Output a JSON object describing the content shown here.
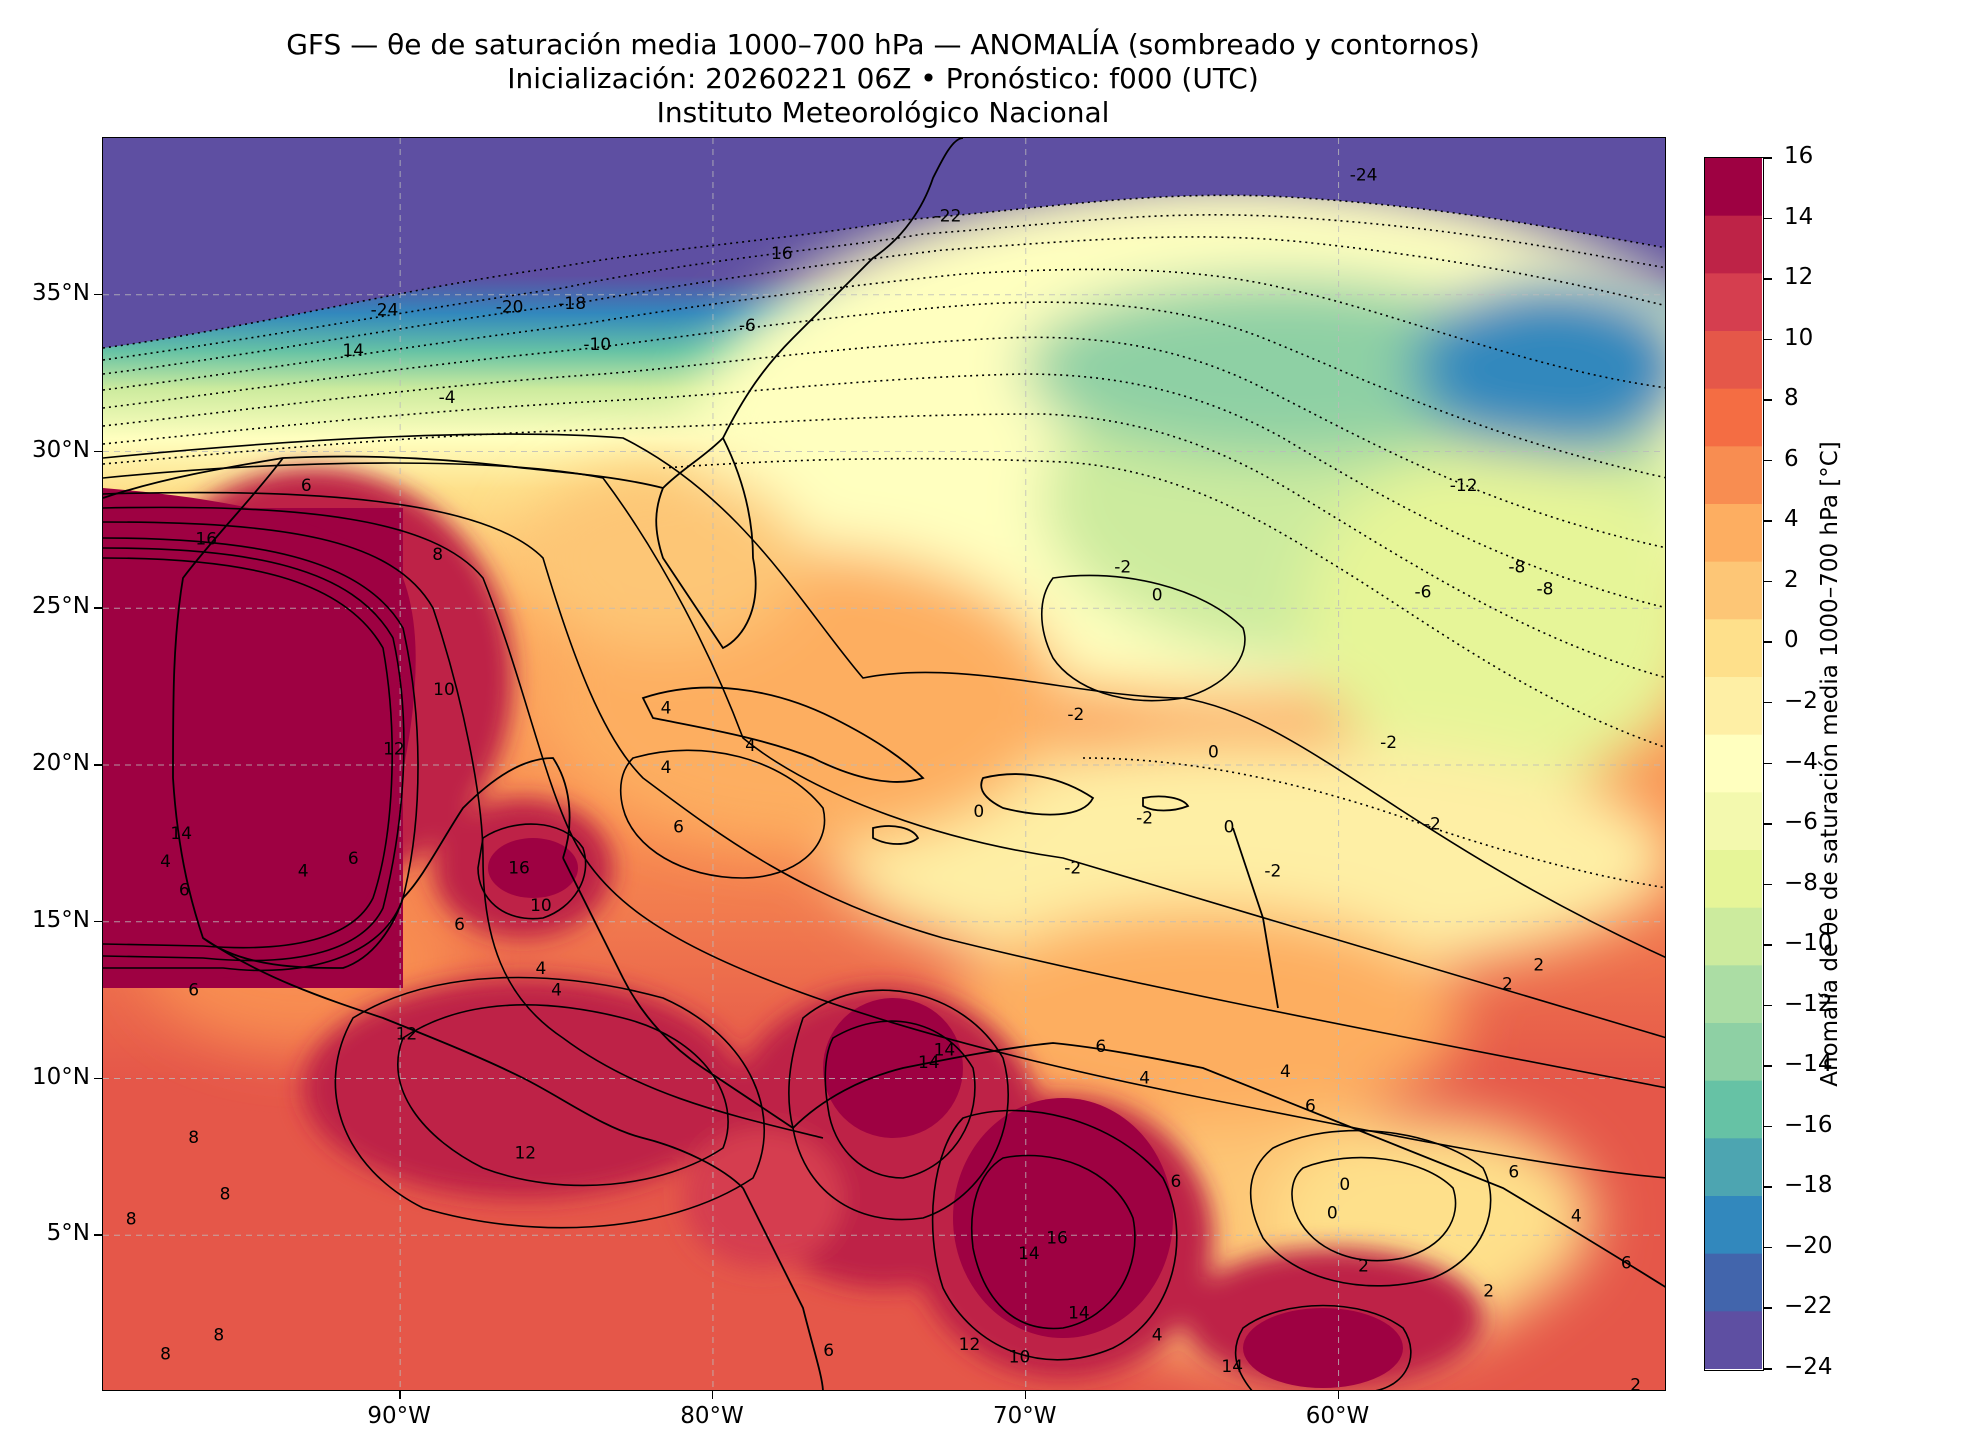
{
  "title": {
    "line1": "GFS — θe de saturación media 1000–700 hPa — ANOMALÍA (sombreado y contornos)",
    "line2": "Inicialización: 20260221 06Z   •   Pronóstico: f000 (UTC)",
    "line3": "Instituto Meteorológico Nacional"
  },
  "map": {
    "lon_range": [
      -99.5,
      -49.5
    ],
    "lat_range": [
      0,
      40
    ],
    "lat_ticks": [
      {
        "value": 35,
        "label": "35°N"
      },
      {
        "value": 30,
        "label": "30°N"
      },
      {
        "value": 25,
        "label": "25°N"
      },
      {
        "value": 20,
        "label": "20°N"
      },
      {
        "value": 15,
        "label": "15°N"
      },
      {
        "value": 10,
        "label": "10°N"
      },
      {
        "value": 5,
        "label": "5°N"
      }
    ],
    "lon_ticks": [
      {
        "value": -90,
        "label": "90°W"
      },
      {
        "value": -80,
        "label": "80°W"
      },
      {
        "value": -70,
        "label": "70°W"
      },
      {
        "value": -60,
        "label": "60°W"
      }
    ],
    "gridlines": true,
    "contour_labels": [
      {
        "text": "-24",
        "lon": -90.5,
        "lat": 34.5
      },
      {
        "text": "-20",
        "lon": -86.5,
        "lat": 34.6
      },
      {
        "text": "-18",
        "lon": -84.5,
        "lat": 34.7
      },
      {
        "text": "-22",
        "lon": -72.5,
        "lat": 37.5
      },
      {
        "text": "-24",
        "lon": -59.2,
        "lat": 38.8
      },
      {
        "text": "16",
        "lon": -77.8,
        "lat": 36.3
      },
      {
        "text": "14",
        "lon": -91.5,
        "lat": 33.2
      },
      {
        "text": "-10",
        "lon": -83.7,
        "lat": 33.4
      },
      {
        "text": "-6",
        "lon": -78.9,
        "lat": 34.0
      },
      {
        "text": "-4",
        "lon": -88.5,
        "lat": 31.7
      },
      {
        "text": "6",
        "lon": -93.0,
        "lat": 28.9
      },
      {
        "text": "16",
        "lon": -96.2,
        "lat": 27.2
      },
      {
        "text": "8",
        "lon": -88.8,
        "lat": 26.7
      },
      {
        "text": "-2",
        "lon": -66.9,
        "lat": 26.3
      },
      {
        "text": "0",
        "lon": -65.8,
        "lat": 25.4
      },
      {
        "text": "-6",
        "lon": -57.3,
        "lat": 25.5
      },
      {
        "text": "-8",
        "lon": -54.3,
        "lat": 26.3
      },
      {
        "text": "-8",
        "lon": -53.4,
        "lat": 25.6
      },
      {
        "text": "-12",
        "lon": -56.0,
        "lat": 28.9
      },
      {
        "text": "10",
        "lon": -88.6,
        "lat": 22.4
      },
      {
        "text": "12",
        "lon": -90.2,
        "lat": 20.5
      },
      {
        "text": "4",
        "lon": -81.5,
        "lat": 21.8
      },
      {
        "text": "4",
        "lon": -78.8,
        "lat": 20.6
      },
      {
        "text": "4",
        "lon": -81.5,
        "lat": 19.9
      },
      {
        "text": "6",
        "lon": -81.1,
        "lat": 18.0
      },
      {
        "text": "-2",
        "lon": -68.4,
        "lat": 21.6
      },
      {
        "text": "0",
        "lon": -64.0,
        "lat": 20.4
      },
      {
        "text": "-2",
        "lon": -58.4,
        "lat": 20.7
      },
      {
        "text": "-2",
        "lon": -57.0,
        "lat": 18.1
      },
      {
        "text": "0",
        "lon": -71.5,
        "lat": 18.5
      },
      {
        "text": "-2",
        "lon": -66.2,
        "lat": 18.3
      },
      {
        "text": "0",
        "lon": -63.5,
        "lat": 18.0
      },
      {
        "text": "-2",
        "lon": -68.5,
        "lat": 16.7
      },
      {
        "text": "-2",
        "lon": -62.1,
        "lat": 16.6
      },
      {
        "text": "14",
        "lon": -97.0,
        "lat": 17.8
      },
      {
        "text": "4",
        "lon": -97.5,
        "lat": 16.9
      },
      {
        "text": "6",
        "lon": -96.9,
        "lat": 16.0
      },
      {
        "text": "4",
        "lon": -93.1,
        "lat": 16.6
      },
      {
        "text": "6",
        "lon": -91.5,
        "lat": 17.0
      },
      {
        "text": "16",
        "lon": -86.2,
        "lat": 16.7
      },
      {
        "text": "10",
        "lon": -85.5,
        "lat": 15.5
      },
      {
        "text": "6",
        "lon": -88.1,
        "lat": 14.9
      },
      {
        "text": "4",
        "lon": -85.5,
        "lat": 13.5
      },
      {
        "text": "4",
        "lon": -85.0,
        "lat": 12.8
      },
      {
        "text": "6",
        "lon": -96.6,
        "lat": 12.8
      },
      {
        "text": "12",
        "lon": -89.8,
        "lat": 11.4
      },
      {
        "text": "12",
        "lon": -86.0,
        "lat": 7.6
      },
      {
        "text": "2",
        "lon": -54.6,
        "lat": 13.0
      },
      {
        "text": "2",
        "lon": -53.6,
        "lat": 13.6
      },
      {
        "text": "4",
        "lon": -61.7,
        "lat": 10.2
      },
      {
        "text": "6",
        "lon": -67.6,
        "lat": 11.0
      },
      {
        "text": "4",
        "lon": -66.2,
        "lat": 10.0
      },
      {
        "text": "6",
        "lon": -60.9,
        "lat": 9.1
      },
      {
        "text": "14",
        "lon": -72.6,
        "lat": 10.9
      },
      {
        "text": "14",
        "lon": -73.1,
        "lat": 10.5
      },
      {
        "text": "8",
        "lon": -96.6,
        "lat": 8.1
      },
      {
        "text": "8",
        "lon": -95.6,
        "lat": 6.3
      },
      {
        "text": "8",
        "lon": -98.6,
        "lat": 5.5
      },
      {
        "text": "0",
        "lon": -59.8,
        "lat": 6.6
      },
      {
        "text": "0",
        "lon": -60.2,
        "lat": 5.7
      },
      {
        "text": "6",
        "lon": -54.4,
        "lat": 7.0
      },
      {
        "text": "6",
        "lon": -65.2,
        "lat": 6.7
      },
      {
        "text": "4",
        "lon": -52.4,
        "lat": 5.6
      },
      {
        "text": "14",
        "lon": -69.9,
        "lat": 4.4
      },
      {
        "text": "16",
        "lon": -69.0,
        "lat": 4.9
      },
      {
        "text": "2",
        "lon": -59.2,
        "lat": 4.0
      },
      {
        "text": "2",
        "lon": -55.2,
        "lat": 3.2
      },
      {
        "text": "6",
        "lon": -50.8,
        "lat": 4.1
      },
      {
        "text": "14",
        "lon": -68.3,
        "lat": 2.5
      },
      {
        "text": "12",
        "lon": -71.8,
        "lat": 1.5
      },
      {
        "text": "10",
        "lon": -70.2,
        "lat": 1.1
      },
      {
        "text": "14",
        "lon": -63.4,
        "lat": 0.8
      },
      {
        "text": "8",
        "lon": -95.8,
        "lat": 1.8
      },
      {
        "text": "8",
        "lon": -97.5,
        "lat": 1.2
      },
      {
        "text": "6",
        "lon": -76.3,
        "lat": 1.3
      },
      {
        "text": "4",
        "lon": -65.8,
        "lat": 1.8
      },
      {
        "text": "2",
        "lon": -50.5,
        "lat": 0.2
      }
    ]
  },
  "colorbar": {
    "title": "Anomalía de θe de saturación media 1000–700 hPa [°C]",
    "levels": [
      -24,
      -22,
      -20,
      -18,
      -16,
      -14,
      -12,
      -10,
      -8,
      -6,
      -4,
      -2,
      0,
      2,
      4,
      6,
      8,
      10,
      12,
      14,
      16
    ],
    "colors": [
      "#5e4fa2",
      "#4265ac",
      "#3288bd",
      "#4da5b1",
      "#66c2a5",
      "#8ed0a4",
      "#abdda4",
      "#cceb9e",
      "#e6f598",
      "#f3f9ae",
      "#ffffbf",
      "#feefa5",
      "#fee08b",
      "#fdc676",
      "#fdae61",
      "#f88d51",
      "#f46d43",
      "#e55749",
      "#d53e4f",
      "#be2347",
      "#9e0142"
    ],
    "tick_labels": [
      "16",
      "14",
      "12",
      "10",
      "8",
      "6",
      "4",
      "2",
      "0",
      "−2",
      "−4",
      "−6",
      "−8",
      "−10",
      "−12",
      "−14",
      "−16",
      "−18",
      "−20",
      "−22",
      "−24"
    ]
  }
}
